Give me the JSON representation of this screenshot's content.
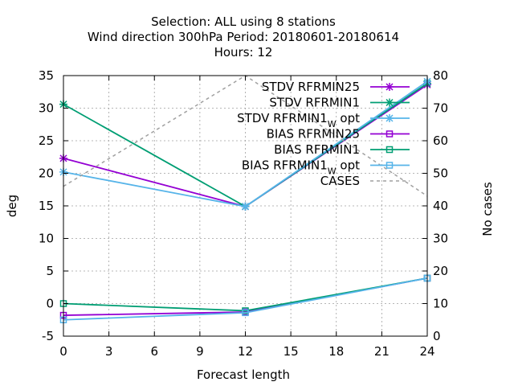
{
  "chart_data": {
    "type": "line",
    "title_lines": [
      "Selection: ALL using     8 stations",
      "Wind direction 300hPa   Period: 20180601-20180614",
      "Hours:  12"
    ],
    "xlabel": "Forecast length",
    "ylabel": "deg",
    "y2label": "No cases",
    "xlim": [
      0,
      24
    ],
    "ylim": [
      -5,
      35
    ],
    "y2lim": [
      0,
      80
    ],
    "xticks": [
      0,
      3,
      6,
      9,
      12,
      15,
      18,
      21,
      24
    ],
    "yticks": [
      -5,
      0,
      5,
      10,
      15,
      20,
      25,
      30,
      35
    ],
    "y2ticks": [
      0,
      10,
      20,
      30,
      40,
      50,
      60,
      70,
      80
    ],
    "grid": true,
    "legend_position": "top-right",
    "x": [
      0,
      12,
      24
    ],
    "series": [
      {
        "name": "STDV RFRMIN25",
        "name_sub": "",
        "name_after": "",
        "axis": "y1",
        "values": [
          22.3,
          14.9,
          33.6
        ],
        "color": "#9400d3",
        "marker": "x",
        "dash": false
      },
      {
        "name": "STDV RFRMIN1",
        "name_sub": "",
        "name_after": "",
        "axis": "y1",
        "values": [
          30.6,
          14.9,
          33.8
        ],
        "color": "#009e73",
        "marker": "x",
        "dash": false
      },
      {
        "name": "STDV RFRMIN1",
        "name_sub": "W",
        "name_after": " opt",
        "axis": "y1",
        "values": [
          20.2,
          14.9,
          34.1
        ],
        "color": "#56b4e9",
        "marker": "x",
        "dash": false
      },
      {
        "name": "BIAS RFRMIN25",
        "name_sub": "",
        "name_after": "",
        "axis": "y1",
        "values": [
          -1.8,
          -1.3,
          3.9
        ],
        "color": "#9400d3",
        "marker": "square",
        "dash": false
      },
      {
        "name": "BIAS RFRMIN1",
        "name_sub": "",
        "name_after": "",
        "axis": "y1",
        "values": [
          0.0,
          -1.1,
          3.9
        ],
        "color": "#009e73",
        "marker": "square",
        "dash": false
      },
      {
        "name": "BIAS RFRMIN1",
        "name_sub": "W",
        "name_after": " opt",
        "axis": "y1",
        "values": [
          -2.5,
          -1.4,
          3.9
        ],
        "color": "#56b4e9",
        "marker": "square",
        "dash": false
      },
      {
        "name": "CASES",
        "name_sub": "",
        "name_after": "",
        "axis": "y2",
        "values": [
          46,
          80,
          43
        ],
        "color": "#a0a0a0",
        "marker": "none",
        "dash": true
      }
    ]
  }
}
